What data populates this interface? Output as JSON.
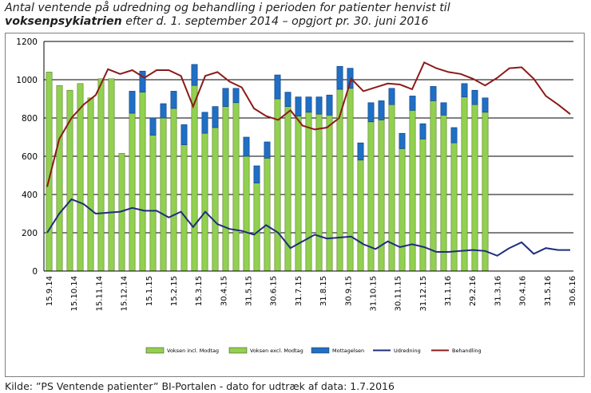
{
  "title": {
    "line1": "Antal ventende på udredning og behandling i perioden for patienter henvist til",
    "line2_bold": "voksenpsykiatrien",
    "line2_rest": " efter d. 1. september 2014 – opgjort pr. 30. juni 2016"
  },
  "source": "Kilde: ”PS Ventende patienter” BI-Portalen - dato for udtræk af data: 1.7.2016",
  "chart_data": {
    "type": "bar",
    "ylim": [
      0,
      1200
    ],
    "yticks": [
      0,
      200,
      400,
      600,
      800,
      1000,
      1200
    ],
    "grid": true,
    "legend_position": "bottom",
    "colors": {
      "incl": "#92d050",
      "excl": "#92d050",
      "mottagelsen": "#1f6fc4",
      "udredning": "#1f2e7a",
      "behandling": "#8b1a1a",
      "grid": "#000000"
    },
    "x_tick_labels": [
      "15.9.14",
      "15.10.14",
      "15.11.14",
      "15.12.14",
      "15.1.15",
      "15.2.15",
      "15.3.15",
      "30.4.15",
      "31.5.15",
      "30.6.15",
      "31.7.15",
      "31.8.15",
      "30.9.15",
      "31.10.15",
      "30.11.15",
      "31.12.15",
      "31.1.16",
      "29.2.16",
      "31.3.16",
      "30.4.16",
      "31.5.16",
      "30.6.16"
    ],
    "series": [
      {
        "name": "Voksen incl. Modtag",
        "type": "bar",
        "values": [
          1040,
          970,
          945,
          980,
          905,
          1005,
          1005,
          615,
          null,
          null,
          null,
          null,
          null,
          null,
          null,
          null,
          null,
          null,
          null,
          null,
          null,
          null,
          null,
          null,
          null,
          null,
          null,
          null,
          null,
          null,
          null,
          null,
          null,
          null,
          null,
          null,
          null,
          null,
          null,
          null,
          null,
          null,
          null,
          null,
          null,
          null,
          null,
          null,
          null,
          null,
          null
        ]
      },
      {
        "name": "Voksen excl. Modtag",
        "type": "bar",
        "values": [
          null,
          null,
          null,
          null,
          null,
          null,
          null,
          null,
          825,
          935,
          710,
          800,
          850,
          660,
          970,
          720,
          750,
          860,
          880,
          600,
          460,
          590,
          900,
          860,
          810,
          830,
          820,
          815,
          950,
          955,
          580,
          780,
          790,
          870,
          640,
          840,
          690,
          890,
          815,
          670,
          910,
          870,
          830,
          null,
          null,
          null,
          null,
          null,
          null,
          null,
          null
        ]
      },
      {
        "name": "Mottagelsen",
        "type": "bar",
        "values": [
          null,
          null,
          null,
          null,
          null,
          null,
          null,
          null,
          115,
          110,
          90,
          75,
          90,
          105,
          110,
          110,
          110,
          95,
          75,
          100,
          90,
          85,
          125,
          75,
          100,
          80,
          90,
          105,
          120,
          105,
          90,
          100,
          100,
          85,
          80,
          75,
          80,
          75,
          65,
          80,
          70,
          75,
          75,
          null,
          null,
          null,
          null,
          null,
          null,
          null,
          null
        ]
      },
      {
        "name": "Udredning",
        "type": "line",
        "values": [
          200,
          300,
          375,
          350,
          300,
          305,
          310,
          330,
          315,
          315,
          280,
          310,
          230,
          310,
          245,
          220,
          210,
          190,
          240,
          200,
          120,
          155,
          190,
          170,
          175,
          180,
          140,
          115,
          155,
          125,
          140,
          125,
          100,
          100,
          105,
          110,
          105,
          80,
          120,
          150,
          90,
          120,
          110,
          110
        ]
      },
      {
        "name": "Behandling",
        "type": "line",
        "values": [
          440,
          690,
          800,
          870,
          920,
          1055,
          1030,
          1050,
          1010,
          1050,
          1050,
          1020,
          860,
          1020,
          1040,
          990,
          960,
          850,
          810,
          790,
          840,
          760,
          740,
          750,
          800,
          1005,
          940,
          960,
          980,
          975,
          950,
          1090,
          1060,
          1040,
          1030,
          1005,
          970,
          1010,
          1060,
          1065,
          1005,
          915,
          870,
          820
        ]
      }
    ]
  }
}
